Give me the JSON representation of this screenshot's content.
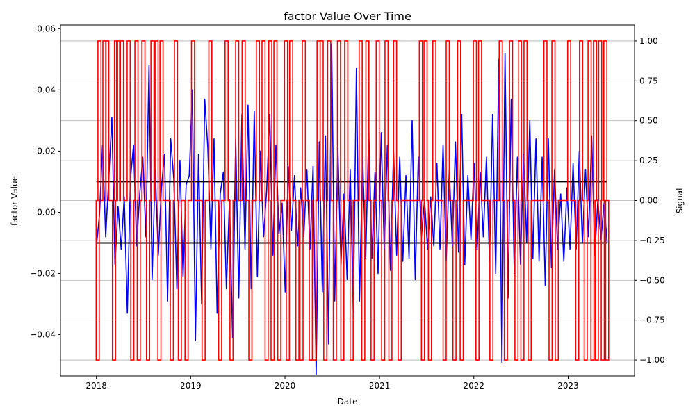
{
  "chart_data": {
    "type": "line",
    "title": "factor Value Over Time",
    "xlabel": "Date",
    "ylabel": "factor Value",
    "y2label": "Signal",
    "x_range": [
      "2017-08-15",
      "2023-09-15"
    ],
    "ylim": [
      -0.0535,
      0.0612
    ],
    "y2lim": [
      -1.1,
      1.1
    ],
    "x_ticks": [
      "2018",
      "2019",
      "2020",
      "2021",
      "2022",
      "2023"
    ],
    "y_ticks": [
      "-0.04",
      "-0.02",
      "0.00",
      "0.02",
      "0.04",
      "0.06"
    ],
    "y2_ticks": [
      "-1.00",
      "-0.75",
      "-0.50",
      "-0.25",
      "0.00",
      "0.25",
      "0.50",
      "0.75",
      "1.00"
    ],
    "grid": "right axis horizontal",
    "date_start": "2018-01-01",
    "date_end": "2023-06-01",
    "thresholds": [
      {
        "name": "upper threshold",
        "value": 0.01,
        "color": "#000000"
      },
      {
        "name": "lower threshold",
        "value": -0.01,
        "color": "#000000"
      }
    ],
    "series": [
      {
        "key": "factor",
        "color": "#0000ff",
        "values": [
          -0.011,
          -0.001,
          0.022,
          -0.008,
          0.011,
          0.031,
          -0.017,
          0.002,
          -0.012,
          0.005,
          -0.033,
          0.011,
          0.022,
          -0.011,
          0.006,
          0.018,
          -0.008,
          0.048,
          -0.022,
          0.014,
          -0.014,
          0.008,
          0.019,
          -0.029,
          0.024,
          0.011,
          -0.025,
          0.017,
          -0.021,
          0.009,
          0.012,
          0.04,
          -0.042,
          0.019,
          -0.03,
          0.037,
          0.021,
          -0.012,
          0.024,
          -0.033,
          0.006,
          0.013,
          -0.025,
          0.004,
          -0.041,
          0.024,
          -0.028,
          0.032,
          -0.012,
          0.035,
          -0.025,
          0.033,
          -0.021,
          0.02,
          -0.008,
          0.007,
          0.032,
          -0.014,
          0.022,
          -0.007,
          0.003,
          -0.026,
          0.015,
          -0.006,
          0.012,
          -0.011,
          0.008,
          -0.008,
          0.014,
          -0.012,
          0.015,
          -0.053,
          0.023,
          -0.026,
          0.025,
          -0.043,
          0.055,
          -0.029,
          0.021,
          -0.017,
          0.006,
          -0.022,
          0.014,
          -0.033,
          0.047,
          -0.029,
          0.018,
          -0.015,
          0.027,
          -0.015,
          0.013,
          -0.02,
          0.026,
          -0.012,
          0.022,
          -0.019,
          0.02,
          -0.014,
          0.018,
          -0.016,
          0.012,
          -0.015,
          0.03,
          -0.022,
          0.018,
          -0.008,
          0.004,
          -0.012,
          0.005,
          -0.011,
          0.016,
          -0.012,
          0.022,
          -0.016,
          0.014,
          -0.011,
          0.023,
          -0.013,
          0.032,
          -0.017,
          0.012,
          -0.009,
          0.016,
          -0.012,
          0.013,
          -0.008,
          0.018,
          -0.016,
          0.032,
          -0.02,
          0.05,
          -0.049,
          0.052,
          -0.028,
          0.037,
          -0.02,
          0.018,
          -0.017,
          0.019,
          -0.01,
          0.03,
          -0.015,
          0.024,
          -0.016,
          0.018,
          -0.024,
          0.024,
          -0.018,
          0.014,
          -0.012,
          0.006,
          -0.016,
          0.008,
          -0.012,
          0.016,
          -0.012,
          0.02,
          -0.01,
          0.014,
          -0.008,
          0.025,
          -0.014,
          0.004,
          -0.009,
          0.003,
          -0.01
        ]
      },
      {
        "key": "signal",
        "color": "#ff0000",
        "axis": "right",
        "spikes": [
          {
            "t": "2018-01-06",
            "v": -1
          },
          {
            "t": "2018-01-13",
            "v": 1
          },
          {
            "t": "2018-02-01",
            "v": 1
          },
          {
            "t": "2018-02-12",
            "v": 1
          },
          {
            "t": "2018-03-10",
            "v": -1
          },
          {
            "t": "2018-03-18",
            "v": 1
          },
          {
            "t": "2018-03-26",
            "v": 1
          },
          {
            "t": "2018-04-10",
            "v": 1
          },
          {
            "t": "2018-05-06",
            "v": 1
          },
          {
            "t": "2018-05-20",
            "v": -1
          },
          {
            "t": "2018-06-05",
            "v": 1
          },
          {
            "t": "2018-06-14",
            "v": -1
          },
          {
            "t": "2018-07-02",
            "v": 1
          },
          {
            "t": "2018-07-20",
            "v": -1
          },
          {
            "t": "2018-08-06",
            "v": 1
          },
          {
            "t": "2018-08-22",
            "v": 1
          },
          {
            "t": "2018-09-02",
            "v": -1
          },
          {
            "t": "2018-09-10",
            "v": 1
          },
          {
            "t": "2018-10-20",
            "v": -1
          },
          {
            "t": "2018-11-05",
            "v": 1
          },
          {
            "t": "2018-11-20",
            "v": -1
          },
          {
            "t": "2018-12-16",
            "v": -1
          },
          {
            "t": "2019-01-10",
            "v": 1
          },
          {
            "t": "2019-02-20",
            "v": -1
          },
          {
            "t": "2019-03-18",
            "v": 1
          },
          {
            "t": "2019-04-25",
            "v": -1
          },
          {
            "t": "2019-05-20",
            "v": 1
          },
          {
            "t": "2019-06-08",
            "v": -1
          },
          {
            "t": "2019-06-30",
            "v": 1
          },
          {
            "t": "2019-07-25",
            "v": 1
          },
          {
            "t": "2019-08-20",
            "v": -1
          },
          {
            "t": "2019-09-18",
            "v": 1
          },
          {
            "t": "2019-10-10",
            "v": 1
          },
          {
            "t": "2019-10-22",
            "v": -1
          },
          {
            "t": "2019-11-05",
            "v": 1
          },
          {
            "t": "2019-11-14",
            "v": -1
          },
          {
            "t": "2019-11-25",
            "v": 1
          },
          {
            "t": "2019-12-10",
            "v": -1
          },
          {
            "t": "2020-01-05",
            "v": 1
          },
          {
            "t": "2020-01-12",
            "v": -1
          },
          {
            "t": "2020-01-25",
            "v": 1
          },
          {
            "t": "2020-02-18",
            "v": -1
          },
          {
            "t": "2020-03-05",
            "v": -1
          },
          {
            "t": "2020-03-14",
            "v": 1
          },
          {
            "t": "2020-04-10",
            "v": -1
          },
          {
            "t": "2020-04-24",
            "v": -1
          },
          {
            "t": "2020-05-10",
            "v": 1
          },
          {
            "t": "2020-05-22",
            "v": 1
          },
          {
            "t": "2020-06-05",
            "v": -1
          },
          {
            "t": "2020-06-20",
            "v": 1
          },
          {
            "t": "2020-07-12",
            "v": -1
          },
          {
            "t": "2020-07-28",
            "v": 1
          },
          {
            "t": "2020-08-10",
            "v": -1
          },
          {
            "t": "2020-08-25",
            "v": 1
          },
          {
            "t": "2020-09-15",
            "v": -1
          },
          {
            "t": "2020-10-20",
            "v": 1
          },
          {
            "t": "2020-10-30",
            "v": -1
          },
          {
            "t": "2020-11-15",
            "v": 1
          },
          {
            "t": "2020-12-05",
            "v": -1
          },
          {
            "t": "2020-12-25",
            "v": 1
          },
          {
            "t": "2021-01-15",
            "v": -1
          },
          {
            "t": "2021-01-28",
            "v": 1
          },
          {
            "t": "2021-02-12",
            "v": -1
          },
          {
            "t": "2021-03-02",
            "v": 1
          },
          {
            "t": "2021-03-20",
            "v": -1
          },
          {
            "t": "2021-06-10",
            "v": 1
          },
          {
            "t": "2021-06-18",
            "v": -1
          },
          {
            "t": "2021-06-28",
            "v": 1
          },
          {
            "t": "2021-07-15",
            "v": -1
          },
          {
            "t": "2021-08-01",
            "v": 1
          },
          {
            "t": "2021-09-10",
            "v": -1
          },
          {
            "t": "2021-09-22",
            "v": 1
          },
          {
            "t": "2021-10-18",
            "v": -1
          },
          {
            "t": "2021-11-05",
            "v": 1
          },
          {
            "t": "2021-11-15",
            "v": -1
          },
          {
            "t": "2022-01-05",
            "v": 1
          },
          {
            "t": "2022-01-15",
            "v": -1
          },
          {
            "t": "2022-01-25",
            "v": 1
          },
          {
            "t": "2022-03-10",
            "v": -1
          },
          {
            "t": "2022-04-15",
            "v": 1
          },
          {
            "t": "2022-05-05",
            "v": -1
          },
          {
            "t": "2022-05-25",
            "v": 1
          },
          {
            "t": "2022-06-15",
            "v": -1
          },
          {
            "t": "2022-06-28",
            "v": 1
          },
          {
            "t": "2022-07-08",
            "v": -1
          },
          {
            "t": "2022-07-20",
            "v": 1
          },
          {
            "t": "2022-08-05",
            "v": -1
          },
          {
            "t": "2022-10-05",
            "v": 1
          },
          {
            "t": "2022-10-25",
            "v": -1
          },
          {
            "t": "2022-11-05",
            "v": 1
          },
          {
            "t": "2022-11-18",
            "v": -1
          },
          {
            "t": "2023-01-05",
            "v": 1
          },
          {
            "t": "2023-02-05",
            "v": -1
          },
          {
            "t": "2023-02-20",
            "v": 1
          },
          {
            "t": "2023-03-10",
            "v": -1
          },
          {
            "t": "2023-03-25",
            "v": 1
          },
          {
            "t": "2023-04-05",
            "v": -1
          },
          {
            "t": "2023-04-15",
            "v": 1
          },
          {
            "t": "2023-04-22",
            "v": -1
          },
          {
            "t": "2023-05-05",
            "v": 1
          },
          {
            "t": "2023-05-15",
            "v": -1
          },
          {
            "t": "2023-05-25",
            "v": 1
          },
          {
            "t": "2023-06-01",
            "v": -1
          }
        ]
      }
    ]
  }
}
